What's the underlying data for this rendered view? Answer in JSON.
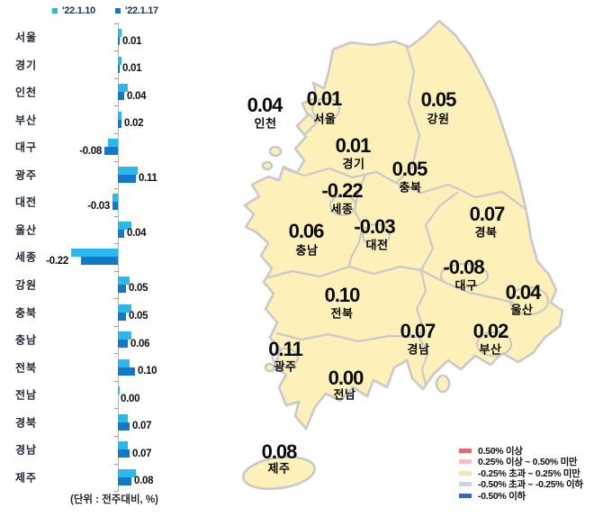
{
  "bar_panel": {
    "legend": [
      {
        "label": "'22.1.10",
        "color": "#29b9ec"
      },
      {
        "label": "'22.1.17",
        "color": "#1278ca"
      }
    ],
    "unit_note": "(단위 : 전주대비, %)"
  },
  "chart_data": {
    "type": "bar",
    "orientation": "horizontal",
    "title": "",
    "xlabel": "",
    "ylabel": "",
    "unit_note": "(단위 : 전주대비, %)",
    "grid": false,
    "categories": [
      "서울",
      "경기",
      "인천",
      "부산",
      "대구",
      "광주",
      "대전",
      "울산",
      "세종",
      "강원",
      "충북",
      "충남",
      "전북",
      "전남",
      "경북",
      "경남",
      "제주"
    ],
    "series": [
      {
        "name": "'22.1.10",
        "color": "#29b9ec",
        "values": [
          0.02,
          0.02,
          0.06,
          0.02,
          -0.06,
          0.12,
          -0.03,
          0.08,
          -0.28,
          0.07,
          0.08,
          0.08,
          0.07,
          0.01,
          0.06,
          0.06,
          0.11
        ]
      },
      {
        "name": "'22.1.17",
        "color": "#1278ca",
        "values": [
          0.01,
          0.01,
          0.04,
          0.02,
          -0.08,
          0.11,
          -0.03,
          0.04,
          -0.22,
          0.05,
          0.05,
          0.06,
          0.1,
          0.0,
          0.07,
          0.07,
          0.08
        ]
      }
    ],
    "labeled_series": "'22.1.17",
    "value_labels": [
      "0.01",
      "0.01",
      "0.04",
      "0.02",
      "-0.08",
      "0.11",
      "-0.03",
      "0.04",
      "-0.22",
      "0.05",
      "0.05",
      "0.06",
      "0.10",
      "0.00",
      "0.07",
      "0.07",
      "0.08"
    ]
  },
  "map": {
    "fill_color": "#fdf0b8",
    "border_color": "#c9c9c9",
    "regions": [
      {
        "name": "인천",
        "value": "0.04",
        "vx": 54,
        "vy": 99,
        "nx": 55,
        "ny": 118
      },
      {
        "name": "서울",
        "value": "0.01",
        "vx": 120,
        "vy": 92,
        "nx": 121,
        "ny": 113
      },
      {
        "name": "강원",
        "value": "0.05",
        "vx": 247,
        "vy": 93,
        "nx": 247,
        "ny": 113
      },
      {
        "name": "경기",
        "value": "0.01",
        "vx": 152,
        "vy": 144,
        "nx": 153,
        "ny": 163
      },
      {
        "name": "충북",
        "value": "0.05",
        "vx": 215,
        "vy": 170,
        "nx": 216,
        "ny": 189
      },
      {
        "name": "세종",
        "value": "-0.22",
        "vx": 140,
        "vy": 194,
        "nx": 140,
        "ny": 213
      },
      {
        "name": "대전",
        "value": "-0.03",
        "vx": 176,
        "vy": 234,
        "nx": 179,
        "ny": 253
      },
      {
        "name": "충남",
        "value": "0.06",
        "vx": 100,
        "vy": 239,
        "nx": 101,
        "ny": 259
      },
      {
        "name": "경북",
        "value": "0.07",
        "vx": 301,
        "vy": 220,
        "nx": 300,
        "ny": 239
      },
      {
        "name": "대구",
        "value": "-0.08",
        "vx": 275,
        "vy": 279,
        "nx": 278,
        "ny": 298
      },
      {
        "name": "울산",
        "value": "0.04",
        "vx": 341,
        "vy": 307,
        "nx": 340,
        "ny": 325
      },
      {
        "name": "전북",
        "value": "0.10",
        "vx": 140,
        "vy": 310,
        "nx": 140,
        "ny": 329
      },
      {
        "name": "경남",
        "value": "0.07",
        "vx": 224,
        "vy": 350,
        "nx": 225,
        "ny": 369
      },
      {
        "name": "부산",
        "value": "0.02",
        "vx": 305,
        "vy": 350,
        "nx": 305,
        "ny": 369
      },
      {
        "name": "광주",
        "value": "0.11",
        "vx": 77,
        "vy": 370,
        "nx": 77,
        "ny": 388
      },
      {
        "name": "전남",
        "value": "0.00",
        "vx": 144,
        "vy": 402,
        "nx": 143,
        "ny": 419
      },
      {
        "name": "제주",
        "value": "0.08",
        "vx": 70,
        "vy": 484,
        "nx": 70,
        "ny": 501
      }
    ],
    "legend": [
      {
        "color": "#e2696e",
        "label": "0.50% 이상"
      },
      {
        "color": "#f6bcc2",
        "label": "0.25% 이상 ~ 0.50% 미만"
      },
      {
        "color": "#fae5a4",
        "label": "-0.25% 초과 ~ 0.25% 미만"
      },
      {
        "color": "#c6d5ec",
        "label": "-0.50% 초과 ~ -0.25% 이하"
      },
      {
        "color": "#3a67bd",
        "label": "-0.50% 이하"
      }
    ]
  }
}
